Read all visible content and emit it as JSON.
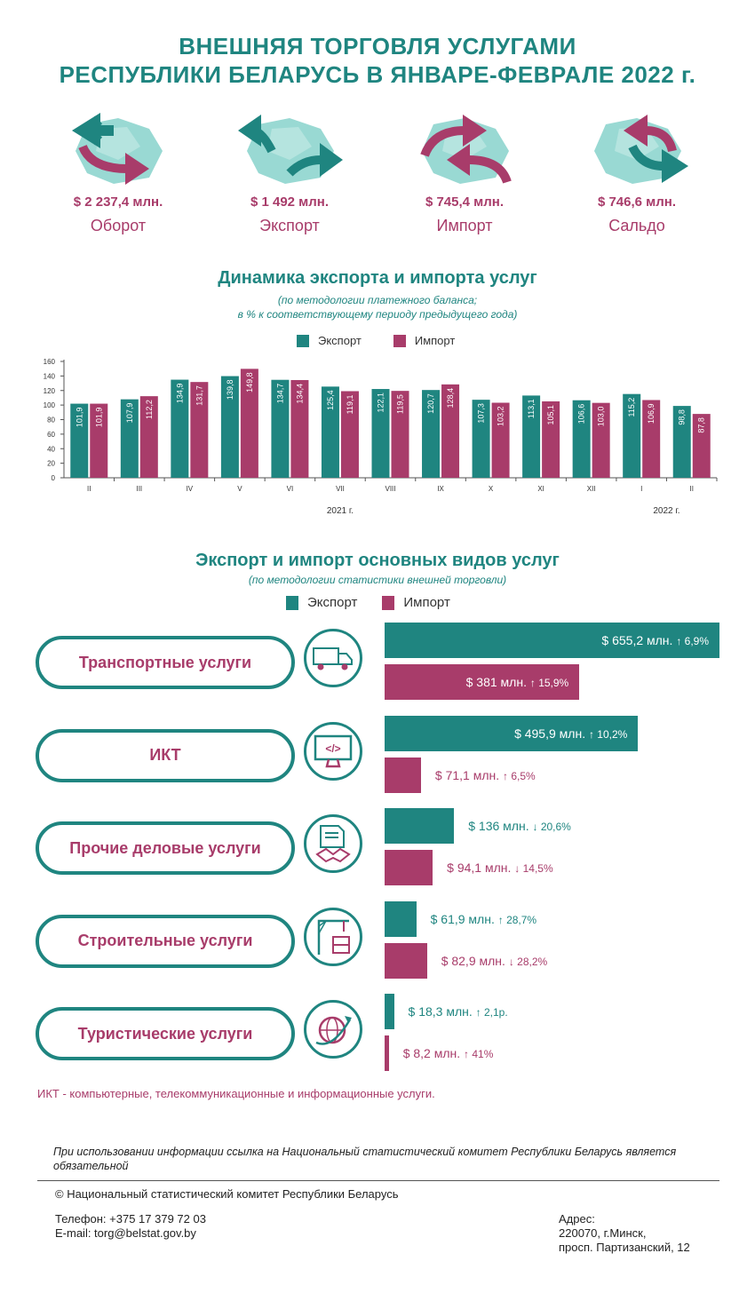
{
  "title": {
    "line1": "ВНЕШНЯЯ ТОРГОВЛЯ УСЛУГАМИ",
    "line2": "РЕСПУБЛИКИ БЕЛАРУСЬ В ЯНВАРЕ-ФЕВРАЛЕ 2022 г."
  },
  "kpis": [
    {
      "value": "$ 2 237,4 млн.",
      "label": "Оборот",
      "icon": "turnover-map-icon"
    },
    {
      "value": "$ 1 492 млн.",
      "label": "Экспорт",
      "icon": "export-map-icon"
    },
    {
      "value": "$ 745,4 млн.",
      "label": "Импорт",
      "icon": "import-map-icon"
    },
    {
      "value": "$ 746,6 млн.",
      "label": "Сальдо",
      "icon": "balance-map-icon"
    }
  ],
  "dynamics": {
    "title": "Динамика экспорта и импорта услуг",
    "subtitle1": "(по методологии платежного баланса;",
    "subtitle2": "в % к соответствующему периоду предыдущего года)"
  },
  "services": {
    "title": "Экспорт и импорт основных видов услуг",
    "subtitle": "(по методологии статистики внешней торговли)",
    "footnote": "ИКТ - компьютерные, телекоммуникационные и информационные услуги."
  },
  "legend": {
    "export": "Экспорт",
    "import": "Импорт"
  },
  "colors": {
    "export": "#1f8580",
    "import": "#a83c6a"
  },
  "chart_data": [
    {
      "type": "bar",
      "categories": [
        "II",
        "III",
        "IV",
        "V",
        "VI",
        "VII",
        "VIII",
        "IX",
        "X",
        "XI",
        "XII",
        "I",
        "II"
      ],
      "year_labels": [
        "2021 г.",
        "2022 г."
      ],
      "series": [
        {
          "name": "Экспорт",
          "values": [
            101.9,
            107.9,
            134.9,
            139.8,
            134.7,
            125.4,
            122.1,
            120.7,
            107.3,
            113.1,
            106.6,
            115.2,
            98.8
          ]
        },
        {
          "name": "Импорт",
          "values": [
            101.9,
            112.2,
            131.7,
            149.8,
            134.4,
            119.1,
            119.5,
            128.4,
            103.2,
            105.1,
            103.0,
            106.9,
            87.8
          ]
        }
      ],
      "value_labels": {
        "Экспорт": [
          "101,9",
          "107,9",
          "134,9",
          "139,8",
          "134,7",
          "125,4",
          "122,1",
          "120,7",
          "107,3",
          "113,1",
          "106,6",
          "115,2",
          "98,8"
        ],
        "Импорт": [
          "101,9",
          "112,2",
          "131,7",
          "149,8",
          "134,4",
          "119,1",
          "119,5",
          "128,4",
          "103,2",
          "105,1",
          "103,0",
          "106,9",
          "87,8"
        ]
      },
      "yticks": [
        "0",
        "20",
        "40",
        "60",
        "80",
        "100",
        "120",
        "140",
        "160"
      ],
      "ylim": [
        0,
        160
      ],
      "grid": false,
      "legend": "top-center"
    },
    {
      "type": "bar",
      "orientation": "horizontal",
      "categories": [
        "Транспортные услуги",
        "ИКТ",
        "Прочие деловые услуги",
        "Строительные услуги",
        "Туристические услуги"
      ],
      "icons": [
        "truck-icon",
        "computer-code-icon",
        "handshake-document-icon",
        "construction-crane-icon",
        "globe-plane-icon"
      ],
      "series": [
        {
          "name": "Экспорт",
          "values": [
            655.2,
            495.9,
            136,
            61.9,
            18.3
          ]
        },
        {
          "name": "Импорт",
          "values": [
            381,
            71.1,
            94.1,
            82.9,
            8.2
          ]
        }
      ],
      "labels": {
        "Экспорт": [
          {
            "value": "$ 655,2 млн.",
            "change": "↑ 6,9%"
          },
          {
            "value": "$ 495,9 млн.",
            "change": "↑ 10,2%"
          },
          {
            "value": "$ 136 млн.",
            "change": "↓ 20,6%"
          },
          {
            "value": "$ 61,9 млн.",
            "change": "↑ 28,7%"
          },
          {
            "value": "$ 18,3 млн.",
            "change": "↑ 2,1р."
          }
        ],
        "Импорт": [
          {
            "value": "$ 381 млн.",
            "change": "↑ 15,9%"
          },
          {
            "value": "$ 71,1 млн.",
            "change": "↑ 6,5%"
          },
          {
            "value": "$ 94,1 млн.",
            "change": "↓ 14,5%"
          },
          {
            "value": "$ 82,9 млн.",
            "change": "↓ 28,2%"
          },
          {
            "value": "$ 8,2 млн.",
            "change": "↑ 41%"
          }
        ]
      },
      "legend": "top-center"
    }
  ],
  "footer": {
    "notice": "При использовании информации ссылка на Национальный статистический комитет Республики Беларусь является обязательной",
    "copyright": "© Национальный статистический комитет Республики Беларусь",
    "phone": "Телефон: +375 17 379 72 03",
    "email": "E-mail: torg@belstat.gov.by",
    "address_label": "Адрес:",
    "address_line1": "220070, г.Минск,",
    "address_line2": "просп. Партизанский, 12"
  }
}
